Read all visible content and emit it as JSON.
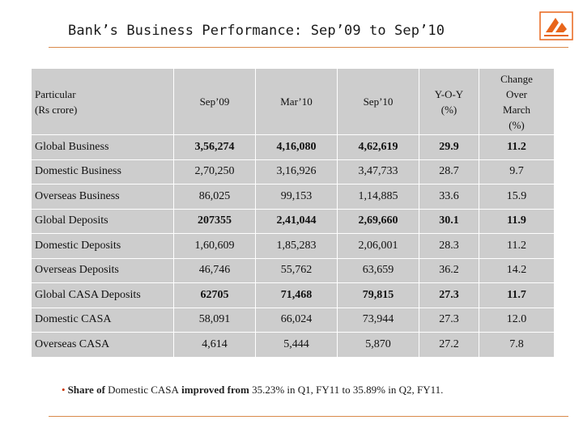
{
  "slide": {
    "title": "Bank’s Business Performance: Sep’09 to Sep’10",
    "logo_icon": "bank-logo-icon"
  },
  "table": {
    "headers": {
      "particular_line1": "Particular",
      "particular_line2": "(Rs crore)",
      "sep09": "Sep’09",
      "mar10": "Mar’10",
      "sep10": "Sep’10",
      "yoy_line1": "Y-O-Y",
      "yoy_line2": "(%)",
      "change_line1": "Change",
      "change_line2": "Over",
      "change_line3": "March",
      "change_line4": "(%)"
    },
    "rows": [
      {
        "label": "Global Business",
        "sep09": "3,56,274",
        "mar10": "4,16,080",
        "sep10": "4,62,619",
        "yoy": "29.9",
        "change": "11.2"
      },
      {
        "label": "Domestic Business",
        "sep09": "2,70,250",
        "mar10": "3,16,926",
        "sep10": "3,47,733",
        "yoy": "28.7",
        "change": "9.7"
      },
      {
        "label": "Overseas Business",
        "sep09": "86,025",
        "mar10": "99,153",
        "sep10": "1,14,885",
        "yoy": "33.6",
        "change": "15.9"
      },
      {
        "label": "Global Deposits",
        "sep09": "207355",
        "mar10": "2,41,044",
        "sep10": "2,69,660",
        "yoy": "30.1",
        "change": "11.9"
      },
      {
        "label": "Domestic Deposits",
        "sep09": "1,60,609",
        "mar10": "1,85,283",
        "sep10": "2,06,001",
        "yoy": "28.3",
        "change": "11.2"
      },
      {
        "label": "Overseas Deposits",
        "sep09": "46,746",
        "mar10": "55,762",
        "sep10": "63,659",
        "yoy": "36.2",
        "change": "14.2"
      },
      {
        "label": "Global CASA Deposits",
        "sep09": "62705",
        "mar10": "71,468",
        "sep10": "79,815",
        "yoy": "27.3",
        "change": "11.7"
      },
      {
        "label": "Domestic CASA",
        "sep09": "58,091",
        "mar10": "66,024",
        "sep10": "73,944",
        "yoy": "27.3",
        "change": "12.0"
      },
      {
        "label": "Overseas CASA",
        "sep09": "4,614",
        "mar10": "5,444",
        "sep10": "5,870",
        "yoy": "27.2",
        "change": "7.8"
      }
    ]
  },
  "note": {
    "bullet": "•",
    "part1": "Share of ",
    "part2": "Domestic CASA",
    "part3": " improved from ",
    "part4": "35.23% in Q1, FY11 to 35.89% in Q2, FY11."
  },
  "colors": {
    "table_bg": "#cdcdcd",
    "accent_rule": "#d98a4a",
    "logo": "#e8651a"
  }
}
